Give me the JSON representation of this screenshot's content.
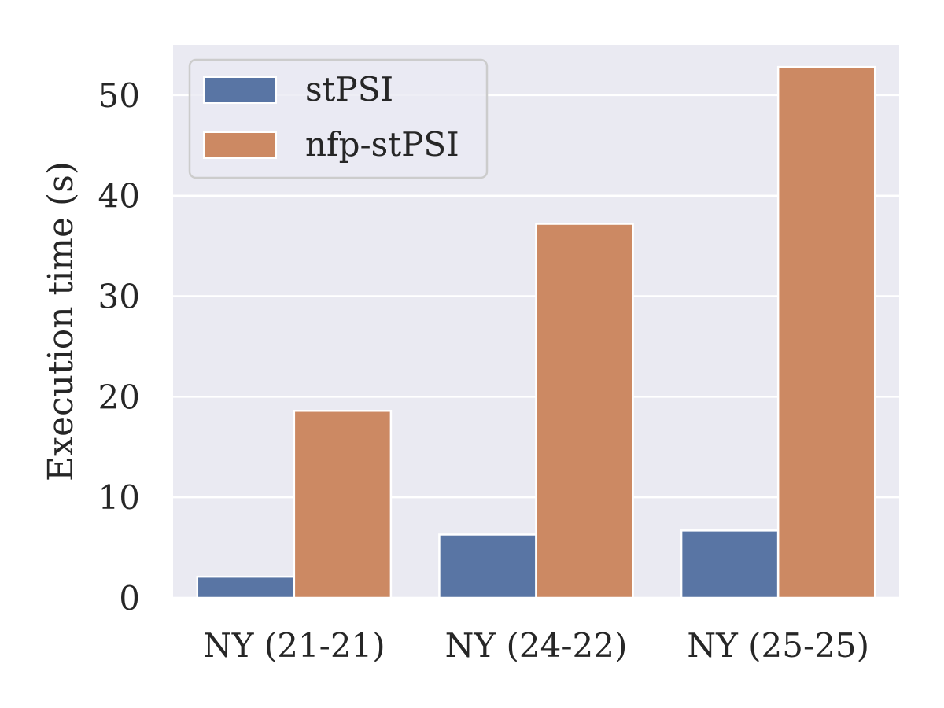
{
  "chart_data": {
    "type": "bar",
    "title": "",
    "xlabel": "",
    "ylabel": "Execution time (s)",
    "categories": [
      "NY (21-21)",
      "NY (24-22)",
      "NY (25-25)"
    ],
    "series": [
      {
        "name": "stPSI",
        "values": [
          2.1,
          6.3,
          6.7
        ],
        "color": "#5975a4"
      },
      {
        "name": "nfp-stPSI",
        "values": [
          18.6,
          37.2,
          52.8
        ],
        "color": "#cc8963"
      }
    ],
    "ylim": [
      0,
      55
    ],
    "yticks": [
      0,
      10,
      20,
      30,
      40,
      50
    ],
    "grid": true,
    "legend_position": "top-left",
    "background_color": "#eaeaf2"
  }
}
